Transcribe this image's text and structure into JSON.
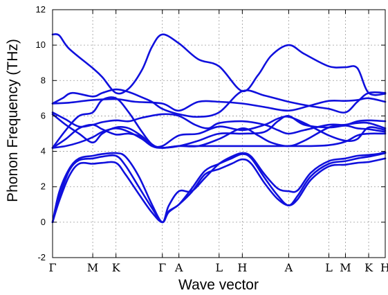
{
  "chart_data": {
    "type": "line",
    "title": "",
    "xlabel": "Wave vector",
    "ylabel": "Phonon Frequency (THz)",
    "ylim": [
      -2,
      12
    ],
    "yticks": [
      -2,
      0,
      2,
      4,
      6,
      8,
      10,
      12
    ],
    "grid": true,
    "line_color": "#1010dd",
    "kpoints": [
      {
        "label": "Γ",
        "x": 0
      },
      {
        "label": "M",
        "x": 0.1213
      },
      {
        "label": "K",
        "x": 0.1914
      },
      {
        "label": "Γ",
        "x": 0.3314
      },
      {
        "label": "A",
        "x": 0.3814
      },
      {
        "label": "L",
        "x": 0.5027
      },
      {
        "label": "H",
        "x": 0.5728
      },
      {
        "label": "A",
        "x": 0.7128
      },
      {
        "label": "L",
        "x": 0.8341
      },
      {
        "label": "M",
        "x": 0.8841
      },
      {
        "label": "K",
        "x": 0.9542
      },
      {
        "label": "H",
        "x": 1.0042
      }
    ],
    "series": [
      {
        "values": [
          [
            0,
            0
          ],
          [
            0.02,
            1.2
          ],
          [
            0.05,
            2.6
          ],
          [
            0.08,
            3.3
          ],
          [
            0.1213,
            3.3
          ],
          [
            0.15,
            3.35
          ],
          [
            0.1914,
            3.35
          ],
          [
            0.22,
            2.7
          ],
          [
            0.26,
            1.6
          ],
          [
            0.3,
            0.55
          ],
          [
            0.3314,
            0
          ],
          [
            0.35,
            0.55
          ],
          [
            0.3814,
            1.0
          ],
          [
            0.42,
            1.7
          ],
          [
            0.46,
            2.7
          ],
          [
            0.5027,
            3.0
          ],
          [
            0.54,
            3.3
          ],
          [
            0.5728,
            3.55
          ],
          [
            0.6,
            3.3
          ],
          [
            0.64,
            2.2
          ],
          [
            0.68,
            1.3
          ],
          [
            0.7128,
            0.95
          ],
          [
            0.74,
            1.3
          ],
          [
            0.78,
            2.4
          ],
          [
            0.8341,
            3.15
          ],
          [
            0.8841,
            3.25
          ],
          [
            0.92,
            3.35
          ],
          [
            0.9542,
            3.4
          ],
          [
            0.98,
            3.5
          ],
          [
            1.0042,
            3.6
          ]
        ]
      },
      {
        "values": [
          [
            0,
            0
          ],
          [
            0.02,
            1.4
          ],
          [
            0.05,
            2.9
          ],
          [
            0.08,
            3.5
          ],
          [
            0.1213,
            3.6
          ],
          [
            0.15,
            3.7
          ],
          [
            0.1914,
            3.75
          ],
          [
            0.22,
            3.2
          ],
          [
            0.26,
            2.0
          ],
          [
            0.3,
            0.8
          ],
          [
            0.3314,
            0
          ],
          [
            0.35,
            0.6
          ],
          [
            0.3814,
            1.0
          ],
          [
            0.42,
            1.9
          ],
          [
            0.46,
            2.9
          ],
          [
            0.5027,
            3.3
          ],
          [
            0.54,
            3.6
          ],
          [
            0.5728,
            3.85
          ],
          [
            0.6,
            3.6
          ],
          [
            0.64,
            2.5
          ],
          [
            0.68,
            1.5
          ],
          [
            0.7128,
            0.95
          ],
          [
            0.74,
            1.5
          ],
          [
            0.78,
            2.6
          ],
          [
            0.8341,
            3.3
          ],
          [
            0.8841,
            3.45
          ],
          [
            0.92,
            3.6
          ],
          [
            0.9542,
            3.7
          ],
          [
            0.98,
            3.8
          ],
          [
            1.0042,
            3.9
          ]
        ]
      },
      {
        "values": [
          [
            0,
            0
          ],
          [
            0.02,
            1.7
          ],
          [
            0.05,
            3.0
          ],
          [
            0.08,
            3.6
          ],
          [
            0.1213,
            3.75
          ],
          [
            0.15,
            3.85
          ],
          [
            0.1914,
            3.9
          ],
          [
            0.22,
            3.7
          ],
          [
            0.26,
            2.6
          ],
          [
            0.3,
            1.0
          ],
          [
            0.3314,
            0
          ],
          [
            0.35,
            0.9
          ],
          [
            0.3814,
            1.75
          ],
          [
            0.42,
            1.75
          ],
          [
            0.46,
            2.5
          ],
          [
            0.5027,
            3.3
          ],
          [
            0.54,
            3.7
          ],
          [
            0.5728,
            3.9
          ],
          [
            0.6,
            3.7
          ],
          [
            0.64,
            2.7
          ],
          [
            0.68,
            1.9
          ],
          [
            0.7128,
            1.75
          ],
          [
            0.74,
            1.8
          ],
          [
            0.78,
            2.8
          ],
          [
            0.8341,
            3.45
          ],
          [
            0.8841,
            3.6
          ],
          [
            0.92,
            3.75
          ],
          [
            0.9542,
            3.8
          ],
          [
            0.98,
            3.85
          ],
          [
            1.0042,
            3.95
          ]
        ]
      },
      {
        "values": [
          [
            0,
            4.2
          ],
          [
            0.04,
            4.3
          ],
          [
            0.08,
            4.5
          ],
          [
            0.1213,
            4.8
          ],
          [
            0.15,
            5.1
          ],
          [
            0.1914,
            5.3
          ],
          [
            0.23,
            5.1
          ],
          [
            0.27,
            4.7
          ],
          [
            0.3,
            4.3
          ],
          [
            0.3314,
            4.2
          ],
          [
            0.3814,
            4.3
          ],
          [
            0.44,
            4.3
          ],
          [
            0.5027,
            4.3
          ],
          [
            0.5728,
            4.3
          ],
          [
            0.64,
            4.3
          ],
          [
            0.7128,
            4.3
          ],
          [
            0.78,
            4.3
          ],
          [
            0.8341,
            4.35
          ],
          [
            0.8841,
            4.55
          ],
          [
            0.92,
            4.9
          ],
          [
            0.9542,
            5.0
          ],
          [
            1.0042,
            5.0
          ]
        ]
      },
      {
        "values": [
          [
            0,
            4.2
          ],
          [
            0.04,
            4.7
          ],
          [
            0.08,
            5.3
          ],
          [
            0.1213,
            5.5
          ],
          [
            0.15,
            5.25
          ],
          [
            0.1914,
            4.95
          ],
          [
            0.23,
            5.0
          ],
          [
            0.27,
            4.8
          ],
          [
            0.3,
            4.3
          ],
          [
            0.3314,
            4.2
          ],
          [
            0.3814,
            4.3
          ],
          [
            0.44,
            4.6
          ],
          [
            0.5027,
            5.0
          ],
          [
            0.5728,
            5.0
          ],
          [
            0.64,
            5.1
          ],
          [
            0.68,
            5.7
          ],
          [
            0.7128,
            6.0
          ],
          [
            0.76,
            5.5
          ],
          [
            0.8341,
            5.35
          ],
          [
            0.8841,
            5.45
          ],
          [
            0.92,
            5.3
          ],
          [
            0.9542,
            5.25
          ],
          [
            1.0042,
            5.1
          ]
        ]
      },
      {
        "values": [
          [
            0,
            4.2
          ],
          [
            0.04,
            5.2
          ],
          [
            0.08,
            6.0
          ],
          [
            0.1213,
            6.2
          ],
          [
            0.15,
            6.9
          ],
          [
            0.1914,
            7.0
          ],
          [
            0.23,
            6.2
          ],
          [
            0.27,
            5.1
          ],
          [
            0.3,
            4.4
          ],
          [
            0.3314,
            4.2
          ],
          [
            0.3814,
            4.3
          ],
          [
            0.44,
            4.3
          ],
          [
            0.5027,
            4.7
          ],
          [
            0.5728,
            5.3
          ],
          [
            0.62,
            4.9
          ],
          [
            0.66,
            4.5
          ],
          [
            0.7128,
            4.3
          ],
          [
            0.76,
            4.6
          ],
          [
            0.8341,
            5.35
          ],
          [
            0.8841,
            5.5
          ],
          [
            0.92,
            5.6
          ],
          [
            0.9542,
            5.6
          ],
          [
            1.0042,
            5.3
          ]
        ]
      },
      {
        "values": [
          [
            0,
            6.1
          ],
          [
            0.04,
            5.5
          ],
          [
            0.08,
            5.0
          ],
          [
            0.1213,
            4.5
          ],
          [
            0.15,
            5.0
          ],
          [
            0.1914,
            5.35
          ],
          [
            0.23,
            5.3
          ],
          [
            0.27,
            4.85
          ],
          [
            0.3,
            4.35
          ],
          [
            0.3314,
            4.3
          ],
          [
            0.3814,
            4.9
          ],
          [
            0.44,
            5.0
          ],
          [
            0.5027,
            5.4
          ],
          [
            0.5728,
            5.2
          ],
          [
            0.64,
            5.5
          ],
          [
            0.68,
            5.85
          ],
          [
            0.7128,
            5.95
          ],
          [
            0.76,
            5.6
          ],
          [
            0.8341,
            4.9
          ],
          [
            0.8841,
            4.6
          ],
          [
            0.92,
            4.7
          ],
          [
            0.9542,
            5.35
          ],
          [
            1.0042,
            5.2
          ]
        ]
      },
      {
        "values": [
          [
            0,
            6.2
          ],
          [
            0.04,
            5.8
          ],
          [
            0.08,
            5.4
          ],
          [
            0.1213,
            5.5
          ],
          [
            0.15,
            5.65
          ],
          [
            0.1914,
            5.75
          ],
          [
            0.23,
            5.7
          ],
          [
            0.27,
            5.9
          ],
          [
            0.3314,
            6.1
          ],
          [
            0.3814,
            6.0
          ],
          [
            0.43,
            5.5
          ],
          [
            0.47,
            5.3
          ],
          [
            0.5027,
            5.6
          ],
          [
            0.5728,
            5.7
          ],
          [
            0.64,
            5.5
          ],
          [
            0.68,
            5.2
          ],
          [
            0.7128,
            5.0
          ],
          [
            0.76,
            5.2
          ],
          [
            0.8341,
            5.5
          ],
          [
            0.8841,
            5.5
          ],
          [
            0.92,
            5.7
          ],
          [
            0.9542,
            5.75
          ],
          [
            1.0042,
            5.7
          ]
        ]
      },
      {
        "values": [
          [
            0,
            6.7
          ],
          [
            0.05,
            6.75
          ],
          [
            0.1213,
            6.9
          ],
          [
            0.1914,
            6.95
          ],
          [
            0.25,
            6.8
          ],
          [
            0.3314,
            6.7
          ],
          [
            0.3814,
            6.3
          ],
          [
            0.44,
            6.8
          ],
          [
            0.5027,
            6.8
          ],
          [
            0.5728,
            6.7
          ],
          [
            0.64,
            6.5
          ],
          [
            0.7128,
            6.3
          ],
          [
            0.78,
            6.6
          ],
          [
            0.8341,
            6.85
          ],
          [
            0.8841,
            6.85
          ],
          [
            0.92,
            6.9
          ],
          [
            0.9542,
            7.0
          ],
          [
            1.0042,
            6.8
          ]
        ]
      },
      {
        "values": [
          [
            0,
            6.7
          ],
          [
            0.03,
            7.0
          ],
          [
            0.06,
            7.3
          ],
          [
            0.1213,
            7.1
          ],
          [
            0.15,
            7.3
          ],
          [
            0.1914,
            7.5
          ],
          [
            0.23,
            7.35
          ],
          [
            0.27,
            7.05
          ],
          [
            0.3,
            6.8
          ],
          [
            0.3314,
            6.4
          ],
          [
            0.3814,
            6.1
          ],
          [
            0.44,
            5.95
          ],
          [
            0.5027,
            6.2
          ],
          [
            0.5728,
            7.4
          ],
          [
            0.64,
            7.15
          ],
          [
            0.7128,
            6.8
          ],
          [
            0.78,
            6.55
          ],
          [
            0.8341,
            6.4
          ],
          [
            0.8841,
            6.2
          ],
          [
            0.92,
            6.8
          ],
          [
            0.9542,
            7.3
          ],
          [
            1.0042,
            7.3
          ]
        ]
      },
      {
        "values": [
          [
            0,
            10.6
          ],
          [
            0.02,
            10.55
          ],
          [
            0.05,
            9.8
          ],
          [
            0.1213,
            8.7
          ],
          [
            0.15,
            8.2
          ],
          [
            0.1914,
            7.3
          ],
          [
            0.23,
            7.55
          ],
          [
            0.27,
            8.6
          ],
          [
            0.3,
            9.9
          ],
          [
            0.3314,
            10.6
          ],
          [
            0.3814,
            10.1
          ],
          [
            0.44,
            9.2
          ],
          [
            0.5027,
            8.8
          ],
          [
            0.5728,
            7.4
          ],
          [
            0.62,
            8.3
          ],
          [
            0.66,
            9.4
          ],
          [
            0.7128,
            10.0
          ],
          [
            0.76,
            9.5
          ],
          [
            0.8341,
            8.8
          ],
          [
            0.8841,
            8.75
          ],
          [
            0.92,
            8.7
          ],
          [
            0.9542,
            7.3
          ],
          [
            1.0042,
            7.25
          ]
        ]
      }
    ]
  }
}
